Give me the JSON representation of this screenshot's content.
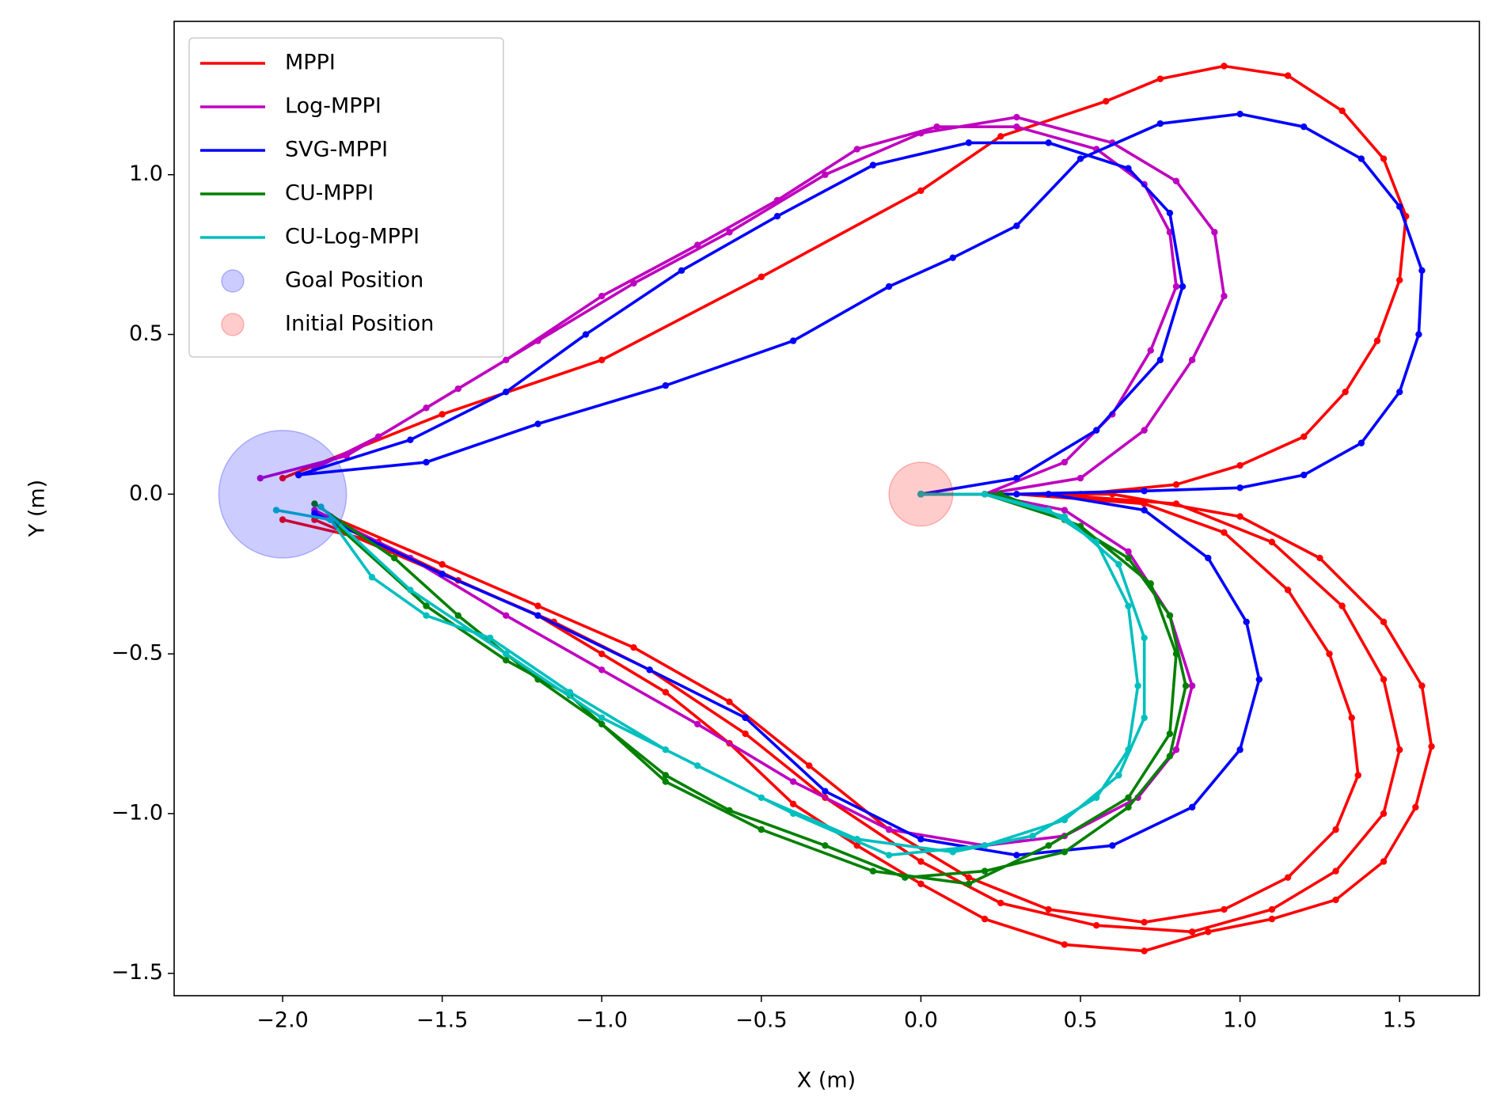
{
  "chart_data": {
    "type": "line",
    "xlabel": "X (m)",
    "ylabel": "Y (m)",
    "xlim": [
      -2.34,
      1.75
    ],
    "ylim": [
      -1.57,
      1.48
    ],
    "xticks": [
      {
        "value": -2,
        "label": "−2.0"
      },
      {
        "value": -1.5,
        "label": "−1.5"
      },
      {
        "value": -1,
        "label": "−1.0"
      },
      {
        "value": -0.5,
        "label": "−0.5"
      },
      {
        "value": 0,
        "label": "0.0"
      },
      {
        "value": 0.5,
        "label": "0.5"
      },
      {
        "value": 1,
        "label": "1.0"
      },
      {
        "value": 1.5,
        "label": "1.5"
      }
    ],
    "yticks": [
      {
        "value": -1.5,
        "label": "−1.5"
      },
      {
        "value": -1,
        "label": "−1.0"
      },
      {
        "value": -0.5,
        "label": "−0.5"
      },
      {
        "value": 0,
        "label": "0.0"
      },
      {
        "value": 0.5,
        "label": "0.5"
      },
      {
        "value": 1,
        "label": "1.0"
      }
    ],
    "legend": "upper left",
    "series": [
      {
        "name": "MPPI",
        "color": "#ff0000",
        "marker": "line",
        "x": [
          0,
          0.2,
          0.5,
          0.8,
          1.0,
          1.2,
          1.33,
          1.43,
          1.5,
          1.52,
          1.45,
          1.32,
          1.15,
          0.95,
          0.75,
          0.58,
          0.25,
          0,
          -0.5,
          -1,
          -1.5,
          -2.0,
          null,
          0,
          0.2,
          0.6,
          1.0,
          1.25,
          1.45,
          1.57,
          1.6,
          1.55,
          1.45,
          1.3,
          1.1,
          0.9,
          0.7,
          0.45,
          0.2,
          0,
          -0.2,
          -0.4,
          -0.6,
          -0.8,
          -1.0,
          -1.2,
          -1.45,
          -1.7,
          -2.0,
          null,
          0,
          0.3,
          0.7,
          0.95,
          1.15,
          1.28,
          1.35,
          1.37,
          1.3,
          1.15,
          0.95,
          0.7,
          0.4,
          0.15,
          -0.1,
          -0.35,
          -0.6,
          -0.9,
          -1.2,
          -1.5,
          -1.85,
          null,
          0,
          0.4,
          0.8,
          1.1,
          1.32,
          1.45,
          1.5,
          1.45,
          1.3,
          1.1,
          0.85,
          0.55,
          0.25,
          0,
          -0.3,
          -0.55,
          -0.85,
          -1.15,
          -1.5,
          -1.9
        ],
        "values": [
          0,
          0,
          0,
          0.03,
          0.09,
          0.18,
          0.32,
          0.48,
          0.67,
          0.87,
          1.05,
          1.2,
          1.31,
          1.34,
          1.3,
          1.23,
          1.12,
          0.95,
          0.68,
          0.42,
          0.25,
          0.05,
          null,
          0,
          0,
          0,
          -0.07,
          -0.2,
          -0.4,
          -0.6,
          -0.79,
          -0.98,
          -1.15,
          -1.27,
          -1.33,
          -1.37,
          -1.43,
          -1.41,
          -1.33,
          -1.22,
          -1.1,
          -0.97,
          -0.78,
          -0.62,
          -0.5,
          -0.38,
          -0.27,
          -0.15,
          -0.08,
          null,
          0,
          0,
          -0.03,
          -0.12,
          -0.3,
          -0.5,
          -0.7,
          -0.88,
          -1.05,
          -1.2,
          -1.3,
          -1.34,
          -1.3,
          -1.2,
          -1.05,
          -0.85,
          -0.65,
          -0.48,
          -0.35,
          -0.22,
          -0.07,
          null,
          0,
          0,
          -0.03,
          -0.15,
          -0.35,
          -0.58,
          -0.8,
          -1.0,
          -1.18,
          -1.3,
          -1.37,
          -1.35,
          -1.28,
          -1.15,
          -0.95,
          -0.75,
          -0.55,
          -0.4,
          -0.25,
          -0.08
        ]
      },
      {
        "name": "Log-MPPI",
        "color": "#bf00bf",
        "marker": "line",
        "x": [
          0,
          0.2,
          0.45,
          0.6,
          0.72,
          0.8,
          0.78,
          0.7,
          0.55,
          0.3,
          0.05,
          -0.2,
          -0.45,
          -0.7,
          -1.0,
          -1.3,
          -1.55,
          -1.8,
          -2.07,
          null,
          0,
          0.2,
          0.5,
          0.7,
          0.85,
          0.95,
          0.92,
          0.8,
          0.6,
          0.3,
          0,
          -0.3,
          -0.6,
          -0.9,
          -1.2,
          -1.45,
          -1.7,
          -1.9,
          null,
          0,
          0.2,
          0.45,
          0.65,
          0.78,
          0.85,
          0.8,
          0.68,
          0.45,
          0.2,
          -0.1,
          -0.4,
          -0.7,
          -1.0,
          -1.3,
          -1.6,
          -1.9
        ],
        "values": [
          0,
          0,
          0.1,
          0.25,
          0.45,
          0.65,
          0.82,
          0.97,
          1.08,
          1.15,
          1.15,
          1.08,
          0.92,
          0.78,
          0.62,
          0.42,
          0.27,
          0.12,
          0.05,
          null,
          0,
          0,
          0.05,
          0.2,
          0.42,
          0.62,
          0.82,
          0.98,
          1.1,
          1.18,
          1.13,
          1.0,
          0.82,
          0.66,
          0.48,
          0.33,
          0.18,
          0.08,
          null,
          0,
          0,
          -0.05,
          -0.18,
          -0.38,
          -0.6,
          -0.8,
          -0.95,
          -1.07,
          -1.1,
          -1.05,
          -0.9,
          -0.72,
          -0.55,
          -0.38,
          -0.2,
          -0.05
        ]
      },
      {
        "name": "SVG-MPPI",
        "color": "#0000ff",
        "marker": "line",
        "x": [
          0,
          0.3,
          0.7,
          1.0,
          1.2,
          1.38,
          1.5,
          1.56,
          1.57,
          1.5,
          1.38,
          1.2,
          1.0,
          0.75,
          0.5,
          0.3,
          0.1,
          -0.1,
          -0.4,
          -0.8,
          -1.2,
          -1.55,
          -1.95,
          null,
          0,
          0.3,
          0.55,
          0.75,
          0.82,
          0.78,
          0.65,
          0.4,
          0.15,
          -0.15,
          -0.45,
          -0.75,
          -1.05,
          -1.3,
          -1.6,
          -1.95,
          null,
          0,
          0.4,
          0.7,
          0.9,
          1.02,
          1.06,
          1.0,
          0.85,
          0.6,
          0.3,
          0,
          -0.3,
          -0.55,
          -0.85,
          -1.2,
          -1.5,
          -1.9
        ],
        "values": [
          0,
          0,
          0.01,
          0.02,
          0.06,
          0.16,
          0.32,
          0.5,
          0.7,
          0.9,
          1.05,
          1.15,
          1.19,
          1.16,
          1.05,
          0.84,
          0.74,
          0.65,
          0.48,
          0.34,
          0.22,
          0.1,
          0.06,
          null,
          0,
          0.05,
          0.2,
          0.42,
          0.65,
          0.88,
          1.02,
          1.1,
          1.1,
          1.03,
          0.87,
          0.7,
          0.5,
          0.32,
          0.17,
          0.06,
          null,
          0,
          0,
          -0.05,
          -0.2,
          -0.4,
          -0.58,
          -0.8,
          -0.98,
          -1.1,
          -1.13,
          -1.08,
          -0.93,
          -0.7,
          -0.55,
          -0.38,
          -0.25,
          -0.06
        ]
      },
      {
        "name": "CU-MPPI",
        "color": "#008000",
        "marker": "line",
        "x": [
          0,
          0.2,
          0.45,
          0.65,
          0.78,
          0.83,
          0.78,
          0.65,
          0.45,
          0.2,
          -0.05,
          -0.3,
          -0.6,
          -0.8,
          -1.0,
          -1.2,
          -1.45,
          -1.65,
          -1.9,
          null,
          0,
          0.25,
          0.5,
          0.72,
          0.8,
          0.78,
          0.65,
          0.4,
          0.15,
          -0.15,
          -0.5,
          -0.8,
          -1.1,
          -1.3,
          -1.55,
          -1.85
        ],
        "values": [
          0,
          0,
          -0.08,
          -0.2,
          -0.38,
          -0.6,
          -0.82,
          -0.98,
          -1.12,
          -1.18,
          -1.2,
          -1.1,
          -0.99,
          -0.88,
          -0.72,
          -0.58,
          -0.38,
          -0.2,
          -0.03,
          null,
          0,
          0,
          -0.1,
          -0.28,
          -0.5,
          -0.75,
          -0.95,
          -1.1,
          -1.22,
          -1.18,
          -1.05,
          -0.9,
          -0.63,
          -0.52,
          -0.35,
          -0.08
        ]
      },
      {
        "name": "CU-Log-MPPI",
        "color": "#00bfbf",
        "marker": "line",
        "x": [
          0,
          0.2,
          0.4,
          0.55,
          0.65,
          0.68,
          0.65,
          0.55,
          0.35,
          0.1,
          -0.2,
          -0.5,
          -0.8,
          -1.1,
          -1.35,
          -1.55,
          -1.72,
          -1.85,
          -2.02,
          null,
          0,
          0.2,
          0.45,
          0.62,
          0.7,
          0.7,
          0.62,
          0.45,
          0.2,
          -0.1,
          -0.4,
          -0.7,
          -1.0,
          -1.3,
          -1.6,
          -1.88
        ],
        "values": [
          0,
          0,
          -0.05,
          -0.15,
          -0.35,
          -0.6,
          -0.8,
          -0.95,
          -1.07,
          -1.12,
          -1.08,
          -0.95,
          -0.8,
          -0.62,
          -0.45,
          -0.38,
          -0.26,
          -0.08,
          -0.05,
          null,
          0,
          0,
          -0.07,
          -0.22,
          -0.45,
          -0.7,
          -0.88,
          -1.02,
          -1.1,
          -1.13,
          -1.0,
          -0.85,
          -0.7,
          -0.5,
          -0.3,
          -0.04
        ]
      },
      {
        "name": "Goal Position",
        "color": "#0000ff",
        "marker": "circle",
        "x": [
          -2
        ],
        "values": [
          0
        ],
        "radius": [
          0.2
        ]
      },
      {
        "name": "Initial Position",
        "color": "#ff0000",
        "marker": "circle",
        "x": [
          0
        ],
        "values": [
          0
        ],
        "radius": [
          0.1
        ]
      }
    ]
  }
}
